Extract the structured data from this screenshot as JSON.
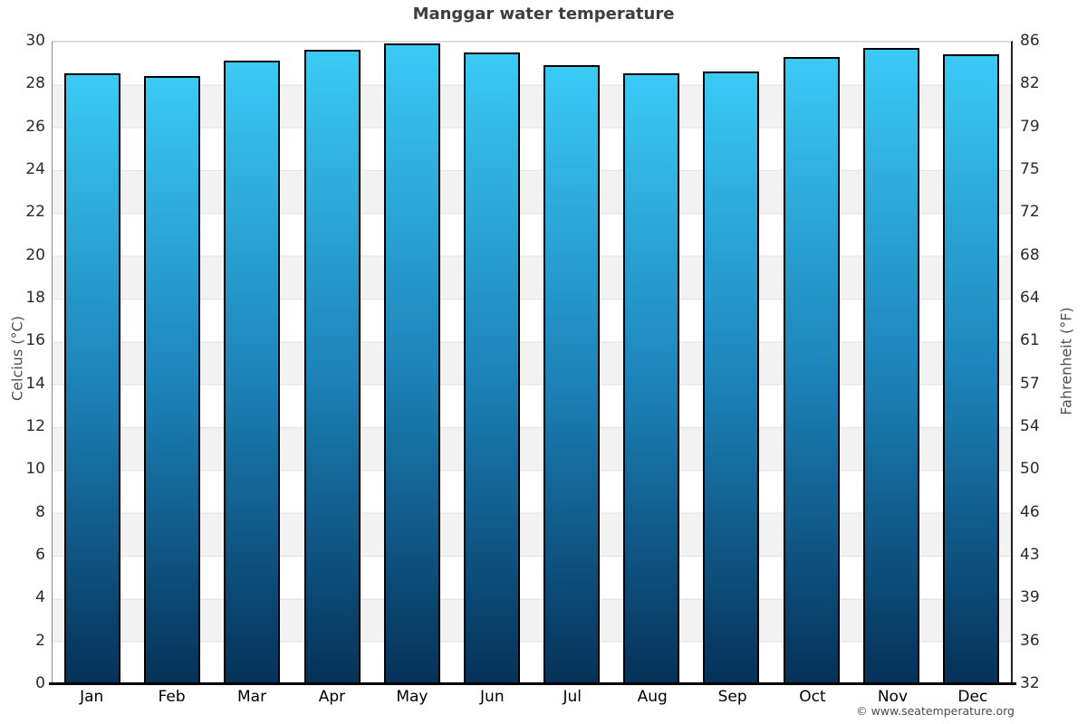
{
  "title": "Manggar water temperature",
  "watermark": "© www.seatemperature.org",
  "chart_data": {
    "type": "bar",
    "title": "Manggar water temperature",
    "categories": [
      "Jan",
      "Feb",
      "Mar",
      "Apr",
      "May",
      "Jun",
      "Jul",
      "Aug",
      "Sep",
      "Oct",
      "Nov",
      "Dec"
    ],
    "values": [
      28.5,
      28.4,
      29.1,
      29.6,
      29.9,
      29.5,
      28.9,
      28.5,
      28.6,
      29.3,
      29.7,
      29.4
    ],
    "xlabel": "",
    "ylabel_left": "Celcius (°C)",
    "ylabel_right": "Fahrenheit (°F)",
    "ylim": [
      0,
      30
    ],
    "celsius_ticks": [
      "30",
      "28",
      "26",
      "24",
      "22",
      "20",
      "18",
      "16",
      "14",
      "12",
      "10",
      "8",
      "6",
      "4",
      "2",
      "0"
    ],
    "fahrenheit_ticks": [
      "86",
      "82",
      "79",
      "75",
      "72",
      "68",
      "64",
      "61",
      "57",
      "54",
      "50",
      "46",
      "43",
      "39",
      "36",
      "32"
    ],
    "grid": "alternating-horizontal-bands",
    "band_colors": [
      "#ffffff",
      "#f2f2f2"
    ],
    "bar_border_color": "#000000",
    "bar_color_top": "#3bcaf5",
    "bar_color_mid": "#1d84ba",
    "bar_color_bottom": "#053158",
    "legend": "none"
  }
}
